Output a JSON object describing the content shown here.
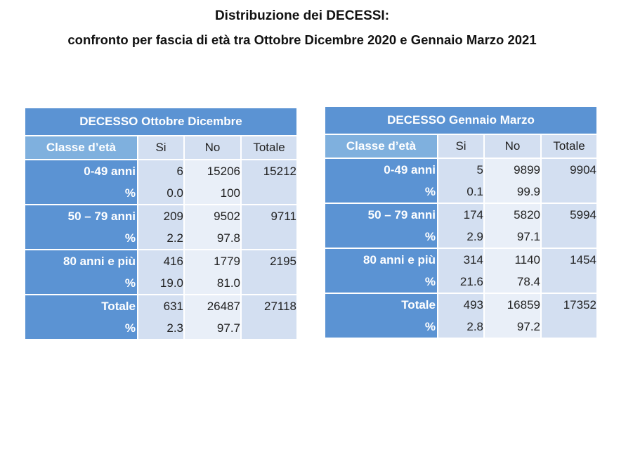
{
  "title_line1": "Distribuzione dei DECESSI:",
  "title_line2": "confronto per fascia di età tra Ottobre Dicembre 2020 e Gennaio Marzo 2021",
  "tables": [
    {
      "header": "DECESSO Ottobre Dicembre",
      "columns": [
        "Classe d’età",
        "Si",
        "No",
        "Totale"
      ],
      "groups": [
        {
          "label": "0-49 anni",
          "si": "6",
          "no": "15206",
          "totale": "15212",
          "pct_label": "%",
          "pct_si": "0.0",
          "pct_no": "100"
        },
        {
          "label": "50 – 79 anni",
          "si": "209",
          "no": "9502",
          "totale": "9711",
          "pct_label": "%",
          "pct_si": "2.2",
          "pct_no": "97.8"
        },
        {
          "label": "80 anni e più",
          "si": "416",
          "no": "1779",
          "totale": "2195",
          "pct_label": "%",
          "pct_si": "19.0",
          "pct_no": "81.0"
        },
        {
          "label": "Totale",
          "si": "631",
          "no": "26487",
          "totale": "27118",
          "pct_label": "%",
          "pct_si": "2.3",
          "pct_no": "97.7"
        }
      ]
    },
    {
      "header": "DECESSO Gennaio Marzo",
      "columns": [
        "Classe d’età",
        "Si",
        "No",
        "Totale"
      ],
      "groups": [
        {
          "label": "0-49 anni",
          "si": "5",
          "no": "9899",
          "totale": "9904",
          "pct_label": "%",
          "pct_si": "0.1",
          "pct_no": "99.9"
        },
        {
          "label": "50 – 79 anni",
          "si": "174",
          "no": "5820",
          "totale": "5994",
          "pct_label": "%",
          "pct_si": "2.9",
          "pct_no": "97.1"
        },
        {
          "label": "80 anni e più",
          "si": "314",
          "no": "1140",
          "totale": "1454",
          "pct_label": "%",
          "pct_si": "21.6",
          "pct_no": "78.4"
        },
        {
          "label": "Totale",
          "si": "493",
          "no": "16859",
          "totale": "17352",
          "pct_label": "%",
          "pct_si": "2.8",
          "pct_no": "97.2"
        }
      ]
    }
  ]
}
